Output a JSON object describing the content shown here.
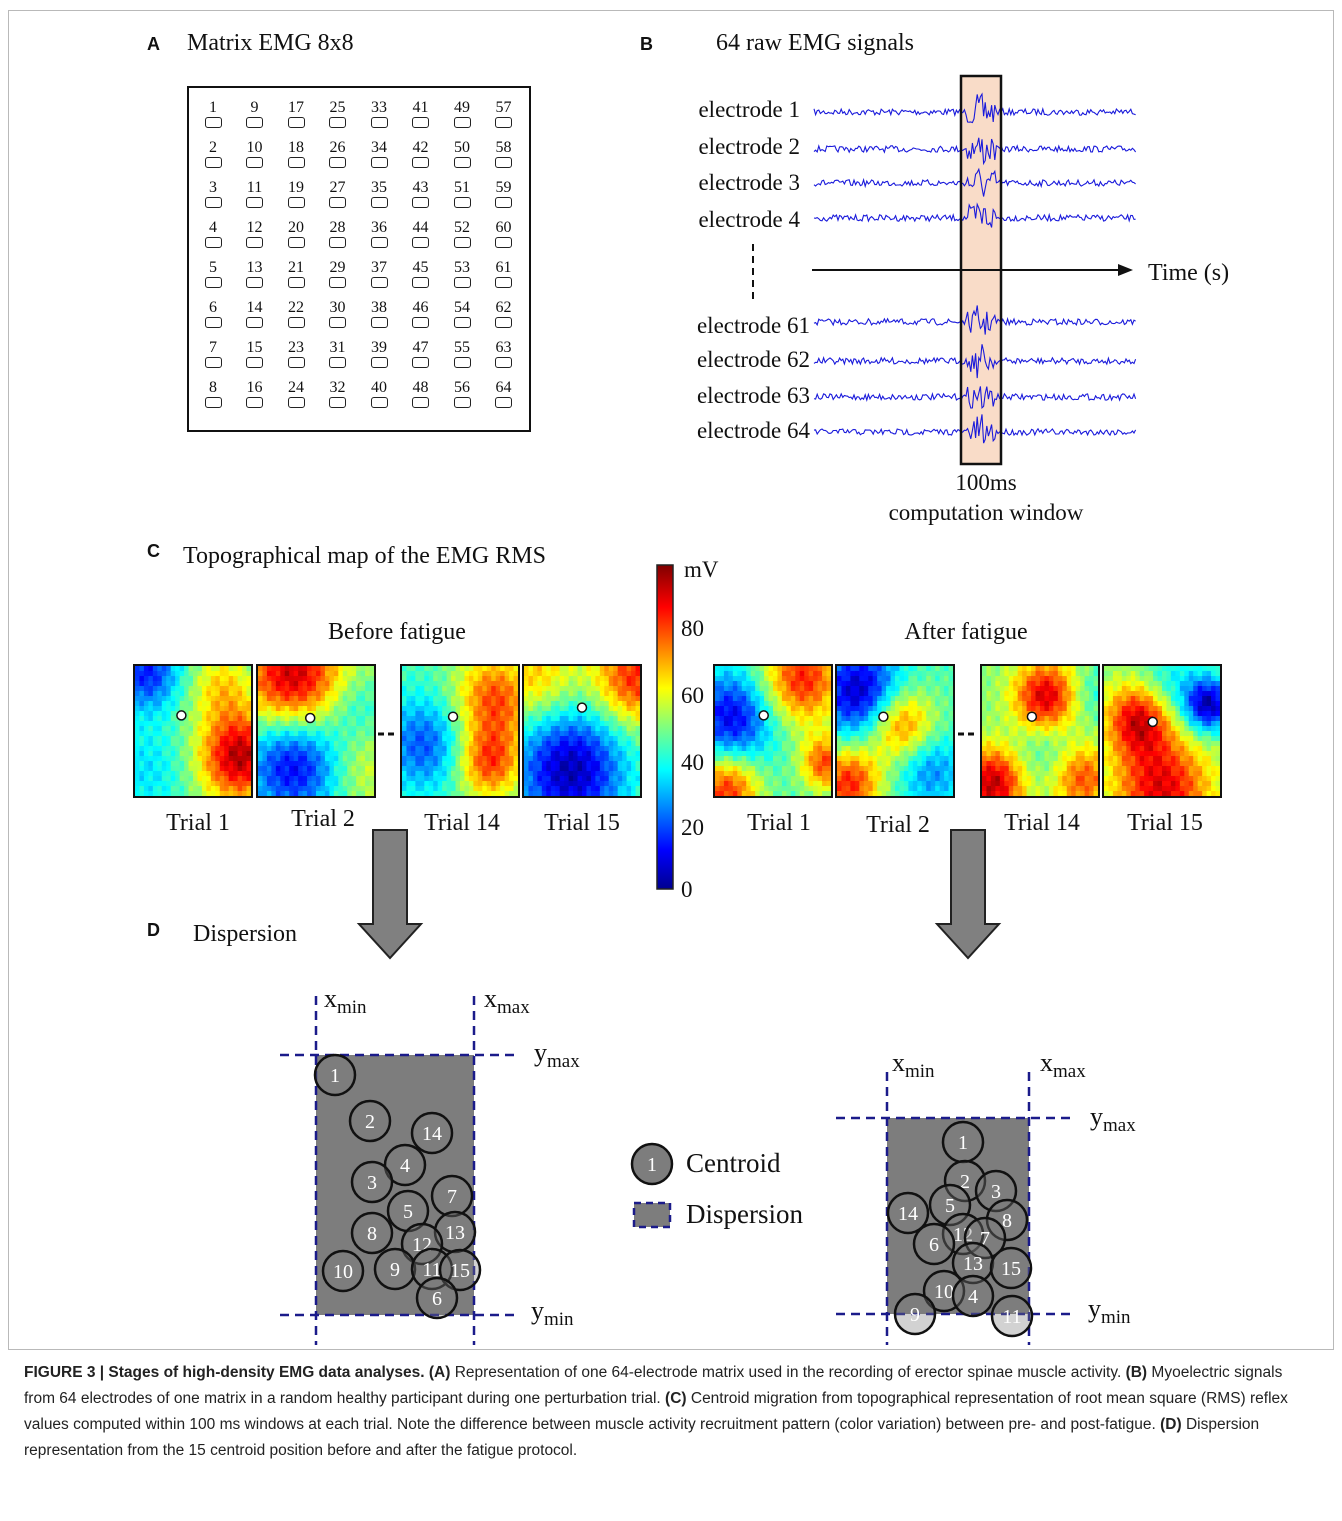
{
  "panelA": {
    "letter": "A",
    "title": "Matrix EMG 8x8",
    "electrodes": [
      [
        "1",
        "9",
        "17",
        "25",
        "33",
        "41",
        "49",
        "57"
      ],
      [
        "2",
        "10",
        "18",
        "26",
        "34",
        "42",
        "50",
        "58"
      ],
      [
        "3",
        "11",
        "19",
        "27",
        "35",
        "43",
        "51",
        "59"
      ],
      [
        "4",
        "12",
        "20",
        "28",
        "36",
        "44",
        "52",
        "60"
      ],
      [
        "5",
        "13",
        "21",
        "29",
        "37",
        "45",
        "53",
        "61"
      ],
      [
        "6",
        "14",
        "22",
        "30",
        "38",
        "46",
        "54",
        "62"
      ],
      [
        "7",
        "15",
        "23",
        "31",
        "39",
        "47",
        "55",
        "63"
      ],
      [
        "8",
        "16",
        "24",
        "32",
        "40",
        "48",
        "56",
        "64"
      ]
    ]
  },
  "panelB": {
    "letter": "B",
    "title": "64 raw EMG signals",
    "electrodes_top": [
      "electrode 1",
      "electrode 2",
      "electrode 3",
      "electrode 4"
    ],
    "electrodes_bottom": [
      "electrode 61",
      "electrode 62",
      "electrode 63",
      "electrode 64"
    ],
    "axis_label": "Time (s)",
    "window_label_1": "100ms",
    "window_label_2": "computation window",
    "signal_color": "#1a1adb",
    "window_color": "#f9dcc8"
  },
  "panelC": {
    "letter": "C",
    "title": "Topographical map of the EMG RMS",
    "before_label": "Before fatigue",
    "after_label": "After fatigue",
    "before_trials": [
      "Trial 1",
      "Trial 2",
      "Trial 14",
      "Trial 15"
    ],
    "after_trials": [
      "Trial 1",
      "Trial 2",
      "Trial 14",
      "Trial 15"
    ],
    "colorbar": {
      "unit": "mV",
      "ticks": [
        "80",
        "60",
        "40",
        "20",
        "0"
      ],
      "range": [
        0,
        95
      ]
    }
  },
  "panelD": {
    "letter": "D",
    "title": "Dispersion",
    "x_min": "x",
    "x_min_sub": "min",
    "x_max": "x",
    "x_max_sub": "max",
    "y_min": "y",
    "y_min_sub": "min",
    "y_max": "y",
    "y_max_sub": "max",
    "legend_centroid_num": "1",
    "legend_centroid": "Centroid",
    "legend_dispersion": "Dispersion",
    "before_centroids": [
      "1",
      "2",
      "14",
      "4",
      "3",
      "7",
      "5",
      "13",
      "8",
      "12",
      "10",
      "9",
      "11",
      "15",
      "6"
    ],
    "after_centroids": [
      "1",
      "2",
      "3",
      "5",
      "14",
      "8",
      "12",
      "7",
      "6",
      "13",
      "15",
      "10",
      "4",
      "9",
      "11"
    ]
  },
  "caption": {
    "figure": "FIGURE 3 | Stages of high-density EMG data analyses.",
    "a_label": "(A)",
    "a_text": " Representation of one 64-electrode matrix used in the recording of erector spinae muscle activity. ",
    "b_label": "(B)",
    "b_text": " Myoelectric signals from 64 electrodes of one matrix in a random healthy participant during one perturbation trial. ",
    "c_label": "(C)",
    "c_text": " Centroid migration from topographical representation of root mean square (RMS) reflex values computed within 100 ms windows at each trial. Note the difference between muscle activity recruitment pattern (color variation) between pre- and post-fatigue. ",
    "d_label": "(D)",
    "d_text": " Dispersion representation from the 15 centroid position before and after the fatigue protocol."
  }
}
